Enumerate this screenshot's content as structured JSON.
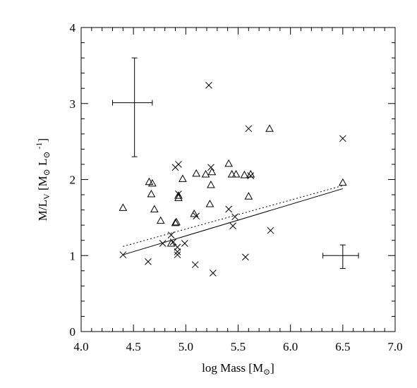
{
  "chart_data": {
    "type": "scatter",
    "title": "",
    "xlabel": "log Mass [M",
    "xlabel_sub": "⊙",
    "xlabel_tail": "]",
    "ylabel": "M/L",
    "ylabel_sub": "V",
    "ylabel_unit_open": " [M",
    "ylabel_unit_sub1": "⊙",
    "ylabel_unit_mid": " L",
    "ylabel_unit_sub2": "⊙",
    "ylabel_unit_sup": " -1",
    "ylabel_unit_close": "]",
    "xlim": [
      4.0,
      7.0
    ],
    "ylim": [
      0,
      4
    ],
    "xticks": [
      4.0,
      4.5,
      5.0,
      5.5,
      6.0,
      6.5,
      7.0
    ],
    "xtick_labels": [
      "4.0",
      "4.5",
      "5.0",
      "5.5",
      "6.0",
      "6.5",
      "7.0"
    ],
    "yticks": [
      0,
      1,
      2,
      3,
      4
    ],
    "ytick_labels": [
      "0",
      "1",
      "2",
      "3",
      "4"
    ],
    "grid": false,
    "series": [
      {
        "marker": "triangle",
        "points": [
          [
            4.4,
            1.63
          ],
          [
            4.65,
            1.97
          ],
          [
            4.67,
            1.81
          ],
          [
            4.68,
            1.95
          ],
          [
            4.7,
            1.61
          ],
          [
            4.76,
            1.46
          ],
          [
            4.86,
            1.16
          ],
          [
            4.9,
            1.43
          ],
          [
            4.91,
            1.44
          ],
          [
            4.93,
            1.76
          ],
          [
            4.93,
            1.79
          ],
          [
            4.97,
            2.01
          ],
          [
            5.08,
            1.55
          ],
          [
            5.1,
            2.08
          ],
          [
            5.19,
            2.07
          ],
          [
            5.23,
            1.68
          ],
          [
            5.24,
            1.93
          ],
          [
            5.25,
            2.1
          ],
          [
            5.41,
            2.21
          ],
          [
            5.44,
            2.07
          ],
          [
            5.48,
            2.07
          ],
          [
            5.56,
            2.06
          ],
          [
            5.6,
            1.78
          ],
          [
            5.62,
            2.07
          ],
          [
            5.8,
            2.67
          ],
          [
            6.5,
            1.96
          ]
        ]
      },
      {
        "marker": "cross",
        "points": [
          [
            4.4,
            1.01
          ],
          [
            4.64,
            0.92
          ],
          [
            4.78,
            1.16
          ],
          [
            4.86,
            1.27
          ],
          [
            4.88,
            1.18
          ],
          [
            4.9,
            2.16
          ],
          [
            4.92,
            1.01
          ],
          [
            4.92,
            1.05
          ],
          [
            4.92,
            1.11
          ],
          [
            4.93,
            1.81
          ],
          [
            4.93,
            2.2
          ],
          [
            4.99,
            1.16
          ],
          [
            5.09,
            0.88
          ],
          [
            5.1,
            1.52
          ],
          [
            5.22,
            3.24
          ],
          [
            5.24,
            2.16
          ],
          [
            5.26,
            0.77
          ],
          [
            5.41,
            1.61
          ],
          [
            5.45,
            1.39
          ],
          [
            5.47,
            1.51
          ],
          [
            5.57,
            0.98
          ],
          [
            5.6,
            2.67
          ],
          [
            5.62,
            2.05
          ],
          [
            5.81,
            1.33
          ],
          [
            6.5,
            2.54
          ]
        ]
      },
      {
        "marker": "line",
        "style": "solid",
        "points": [
          [
            4.4,
            1.01
          ],
          [
            6.5,
            1.88
          ]
        ]
      },
      {
        "marker": "line",
        "style": "dotted",
        "points": [
          [
            4.4,
            1.12
          ],
          [
            6.5,
            1.92
          ]
        ]
      }
    ],
    "error_bars": [
      {
        "x": 4.51,
        "y": 3.01,
        "xerr": [
          4.3,
          4.68
        ],
        "yerr": [
          2.3,
          3.6
        ]
      },
      {
        "x": 6.5,
        "y": 1.0,
        "xerr": [
          6.31,
          6.65
        ],
        "yerr": [
          0.83,
          1.14
        ]
      }
    ]
  }
}
